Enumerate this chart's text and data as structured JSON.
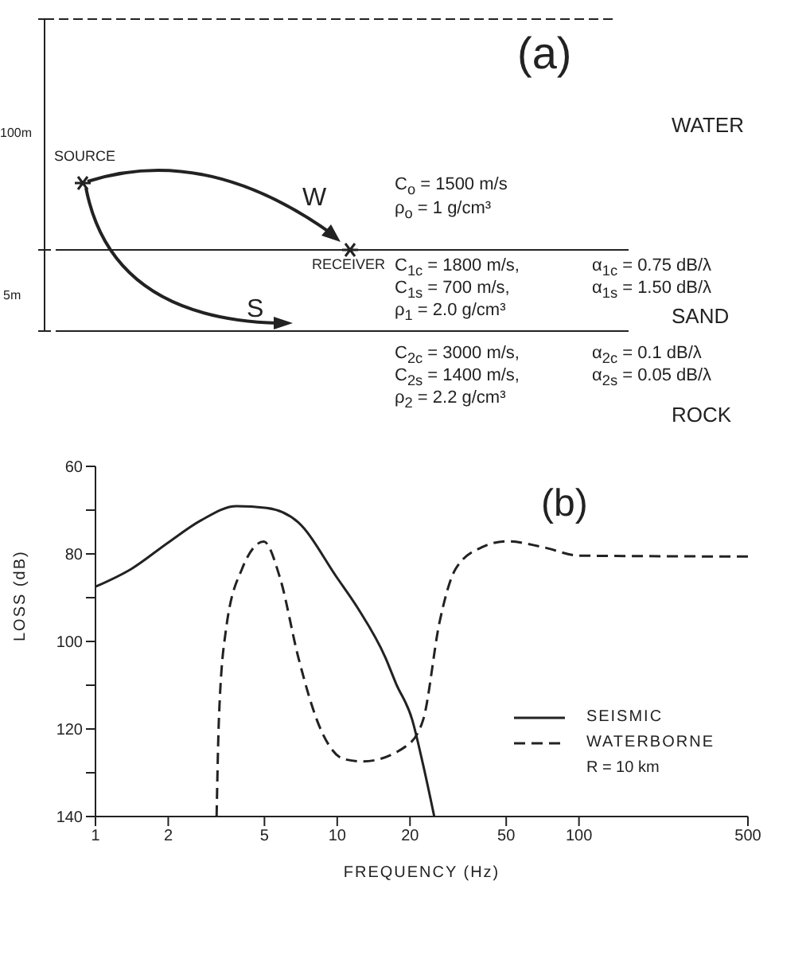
{
  "chart_data": [
    {
      "type": "other",
      "title": "(a)",
      "annotations": [
        "100m",
        "SOURCE",
        "W",
        "RECEIVER",
        "5m",
        "S",
        "WATER",
        "SAND",
        "ROCK",
        "C$_{o}$ = 1500 m/s",
        "ρ$_{o}$ = 1 g/cm³",
        "C$_{1c}$ = 1800 m/s,",
        "C$_{1s}$ = 700 m/s,",
        "ρ$_{1}$ = 2.0 g/cm³",
        "α$_{1c}$ = 0.75 dB/λ",
        "α$_{1s}$ = 1.50 dB/λ",
        "C$_{2c}$ = 3000 m/s,",
        "C$_{2s}$ = 1400 m/s,",
        "ρ$_{2}$ = 2.2 g/cm³",
        "α$_{2c}$ = 0.1 dB/λ",
        "α$_{2s}$ = 0.05 dB/λ"
      ]
    },
    {
      "type": "line",
      "title": "(b)",
      "xlabel": "FREQUENCY (Hz)",
      "ylabel": "LOSS (dB)",
      "log": "x",
      "xlim": [
        1,
        500
      ],
      "xticks": [
        1,
        2,
        5,
        10,
        20,
        50,
        100,
        500
      ],
      "ylim": [
        140,
        60
      ],
      "yticks": [
        60,
        {
          "value": 70,
          "label": null
        },
        80,
        {
          "value": 90,
          "label": null
        },
        100,
        {
          "value": 110,
          "label": null
        },
        120,
        {
          "value": 130,
          "label": null
        },
        140
      ],
      "grid": false,
      "legend": "right",
      "marker": "none",
      "annotations": [
        "R = 10 km"
      ],
      "series": [
        {
          "name": "SEISMIC",
          "color": "#222222",
          "line_style": "solid",
          "x": [
            1,
            1.41,
            2,
            2.74,
            3.83,
            5.1,
            6.9,
            10,
            12.2,
            15.8,
            17.5,
            20.4,
            22.6,
            25.2
          ],
          "values": [
            87.5,
            83.4,
            77.4,
            72.3,
            69.1,
            69.5,
            72.8,
            85.5,
            92.5,
            103.6,
            109.6,
            117.8,
            127.9,
            140
          ]
        },
        {
          "name": "WATERBORNE",
          "color": "#222222",
          "line_style": "dashed",
          "x": [
            3.17,
            3.24,
            3.46,
            4.04,
            4.97,
            5.8,
            6.9,
            8.5,
            10.7,
            12.8,
            19.4,
            22.7,
            26.5,
            30.9,
            40,
            50.5,
            70.3,
            100.7,
            500
          ],
          "values": [
            140,
            117.8,
            97.6,
            83.4,
            77.2,
            85.5,
            103.6,
            119.8,
            126.9,
            127.4,
            123.8,
            117.8,
            95.6,
            83.4,
            78.4,
            77.1,
            78.4,
            80.4,
            80.6
          ]
        }
      ]
    }
  ]
}
